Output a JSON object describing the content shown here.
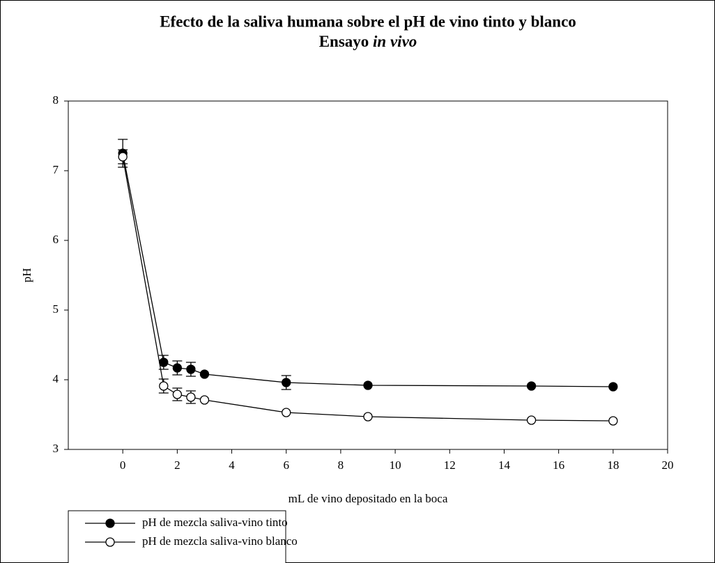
{
  "chart_data": {
    "type": "line",
    "title": "Efecto de la saliva humana sobre el pH de vino tinto y blanco",
    "subtitle": "Ensayo",
    "subtitle_italic": "in vivo",
    "x_label": "mL de vino depositado en la boca",
    "y_label": "pH",
    "x": [
      0,
      1.5,
      2,
      2.5,
      3,
      6,
      9,
      15,
      18
    ],
    "series": [
      {
        "name": "pH de mezcla saliva-vino tinto",
        "color": "#000000",
        "marker_fill": "#000000",
        "values": [
          7.25,
          4.25,
          4.17,
          4.15,
          4.08,
          3.96,
          3.92,
          3.91,
          3.9
        ],
        "errors": [
          0.2,
          0.1,
          0.1,
          0.1,
          null,
          0.1,
          null,
          null,
          null
        ]
      },
      {
        "name": "pH de mezcla saliva-vino blanco",
        "color": "#000000",
        "marker_fill": "#ffffff",
        "values": [
          7.2,
          3.91,
          3.79,
          3.75,
          3.71,
          3.53,
          3.47,
          3.42,
          3.41
        ],
        "errors": [
          0.1,
          0.1,
          0.09,
          0.09,
          null,
          null,
          null,
          null,
          null
        ]
      }
    ],
    "xlim": [
      -2,
      20
    ],
    "xticks": [
      0,
      2,
      4,
      6,
      8,
      10,
      12,
      14,
      16,
      18,
      20
    ],
    "ylim": [
      3,
      8
    ],
    "yticks": [
      3,
      4,
      5,
      6,
      7,
      8
    ],
    "grid": false,
    "legend": "bottom-left"
  }
}
